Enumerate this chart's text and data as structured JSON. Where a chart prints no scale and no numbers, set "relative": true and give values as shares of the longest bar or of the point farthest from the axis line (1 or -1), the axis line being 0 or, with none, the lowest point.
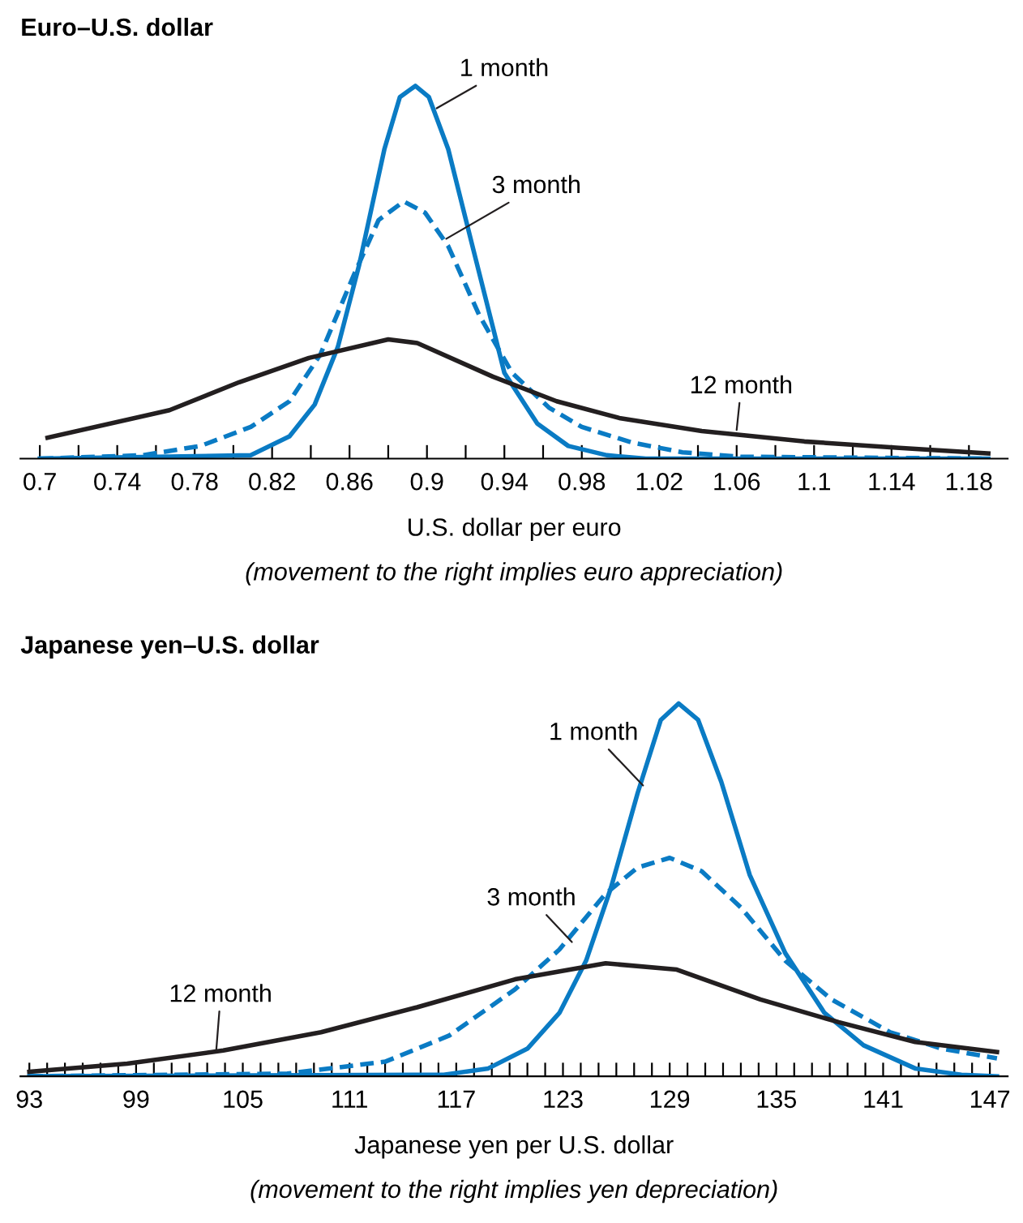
{
  "chart_data": [
    {
      "type": "line",
      "title": "Euro–U.S. dollar",
      "xlabel": "U.S. dollar per euro",
      "relative": true,
      "legend": false,
      "grid": false,
      "xlim": [
        0.69,
        1.2
      ],
      "xticks": [
        0.7,
        {
          "value": 0.72,
          "label": null
        },
        0.74,
        {
          "value": 0.76,
          "label": null
        },
        0.78,
        {
          "value": 0.8,
          "label": null
        },
        0.82,
        {
          "value": 0.84,
          "label": null
        },
        0.86,
        {
          "value": 0.88,
          "label": null
        },
        0.9,
        {
          "value": 0.92,
          "label": null
        },
        0.94,
        {
          "value": 0.96,
          "label": null
        },
        0.98,
        {
          "value": 1.0,
          "label": null
        },
        1.02,
        {
          "value": 1.04,
          "label": null
        },
        1.06,
        {
          "value": 1.08,
          "label": null
        },
        1.1,
        {
          "value": 1.12,
          "label": null
        },
        1.14,
        {
          "value": 1.16,
          "label": null
        },
        1.18
      ],
      "series": [
        {
          "color": "#0a7bc4",
          "line_style": "solid",
          "x": [
            0.7,
            0.809,
            0.829,
            0.842,
            0.854,
            0.865,
            0.878,
            0.886,
            0.894,
            0.901,
            0.911,
            0.924,
            0.94,
            0.957,
            0.973,
            0.993,
            1.013,
            1.19
          ],
          "values": [
            0,
            0.009,
            0.06,
            0.145,
            0.3,
            0.52,
            0.83,
            0.97,
            1.0,
            0.97,
            0.83,
            0.56,
            0.23,
            0.094,
            0.034,
            0.009,
            0,
            0
          ]
        },
        {
          "color": "#0a7bc4",
          "line_style": "dashed",
          "x": [
            0.7,
            0.753,
            0.783,
            0.809,
            0.829,
            0.845,
            0.862,
            0.875,
            0.888,
            0.899,
            0.911,
            0.927,
            0.944,
            0.963,
            0.98,
            1.006,
            1.032,
            1.062,
            1.19
          ],
          "values": [
            0,
            0.009,
            0.034,
            0.085,
            0.154,
            0.28,
            0.49,
            0.64,
            0.69,
            0.66,
            0.57,
            0.385,
            0.23,
            0.137,
            0.085,
            0.043,
            0.017,
            0.005,
            0
          ]
        },
        {
          "color": "#231f20",
          "line_style": "solid",
          "x": [
            0.704,
            0.767,
            0.803,
            0.839,
            0.88,
            0.895,
            0.934,
            0.967,
            1.0,
            1.042,
            1.095,
            1.144,
            1.19
          ],
          "values": [
            0.056,
            0.13,
            0.205,
            0.27,
            0.32,
            0.31,
            0.22,
            0.154,
            0.108,
            0.074,
            0.046,
            0.029,
            0.014
          ]
        }
      ],
      "annotations": [
        {
          "text": "1 month",
          "x": 0.905,
          "y": 0.94
        },
        {
          "text": "3 month",
          "x": 0.91,
          "y": 0.59
        },
        {
          "text": "12 month",
          "x": 1.06,
          "y": 0.077
        },
        "(movement to the right implies euro appreciation)"
      ]
    },
    {
      "type": "line",
      "title": "Japanese yen–U.S. dollar",
      "xlabel": "Japanese yen per U.S. dollar",
      "relative": true,
      "legend": false,
      "grid": false,
      "xlim": [
        92.5,
        148
      ],
      "xticks": [
        93,
        {
          "value": 94,
          "label": null
        },
        {
          "value": 95,
          "label": null
        },
        {
          "value": 96,
          "label": null
        },
        {
          "value": 97,
          "label": null
        },
        {
          "value": 98,
          "label": null
        },
        99,
        {
          "value": 100,
          "label": null
        },
        {
          "value": 101,
          "label": null
        },
        {
          "value": 102,
          "label": null
        },
        {
          "value": 103,
          "label": null
        },
        {
          "value": 104,
          "label": null
        },
        105,
        {
          "value": 106,
          "label": null
        },
        {
          "value": 107,
          "label": null
        },
        {
          "value": 108,
          "label": null
        },
        {
          "value": 109,
          "label": null
        },
        {
          "value": 110,
          "label": null
        },
        111,
        {
          "value": 112,
          "label": null
        },
        {
          "value": 113,
          "label": null
        },
        {
          "value": 114,
          "label": null
        },
        {
          "value": 115,
          "label": null
        },
        {
          "value": 116,
          "label": null
        },
        117,
        {
          "value": 118,
          "label": null
        },
        {
          "value": 119,
          "label": null
        },
        {
          "value": 120,
          "label": null
        },
        {
          "value": 121,
          "label": null
        },
        {
          "value": 122,
          "label": null
        },
        123,
        {
          "value": 124,
          "label": null
        },
        {
          "value": 125,
          "label": null
        },
        {
          "value": 126,
          "label": null
        },
        {
          "value": 127,
          "label": null
        },
        {
          "value": 128,
          "label": null
        },
        129,
        {
          "value": 130,
          "label": null
        },
        {
          "value": 131,
          "label": null
        },
        {
          "value": 132,
          "label": null
        },
        {
          "value": 133,
          "label": null
        },
        {
          "value": 134,
          "label": null
        },
        135,
        {
          "value": 136,
          "label": null
        },
        {
          "value": 137,
          "label": null
        },
        {
          "value": 138,
          "label": null
        },
        {
          "value": 139,
          "label": null
        },
        {
          "value": 140,
          "label": null
        },
        141,
        {
          "value": 142,
          "label": null
        },
        {
          "value": 143,
          "label": null
        },
        {
          "value": 144,
          "label": null
        },
        {
          "value": 145,
          "label": null
        },
        {
          "value": 146,
          "label": null
        },
        147
      ],
      "series": [
        {
          "color": "#0a7bc4",
          "line_style": "solid",
          "x": [
            93,
            116.3,
            118.8,
            121.0,
            122.8,
            124.3,
            125.7,
            127.2,
            128.5,
            129.5,
            130.6,
            131.9,
            133.5,
            135.5,
            137.7,
            139.9,
            142.8,
            145.4,
            147.4
          ],
          "values": [
            0,
            0.004,
            0.021,
            0.074,
            0.17,
            0.31,
            0.506,
            0.76,
            0.956,
            1.0,
            0.956,
            0.79,
            0.54,
            0.33,
            0.17,
            0.083,
            0.021,
            0.004,
            0
          ]
        },
        {
          "color": "#0a7bc4",
          "line_style": "dashed",
          "x": [
            93,
            107.5,
            113.0,
            116.6,
            120.3,
            122.8,
            125.4,
            127.2,
            129.0,
            130.8,
            133.0,
            135.5,
            138.1,
            141.4,
            144.3,
            147.4
          ],
          "values": [
            0,
            0.007,
            0.039,
            0.109,
            0.233,
            0.34,
            0.49,
            0.56,
            0.586,
            0.55,
            0.453,
            0.31,
            0.206,
            0.118,
            0.074,
            0.048
          ]
        },
        {
          "color": "#231f20",
          "line_style": "solid",
          "x": [
            93,
            98.5,
            103.9,
            109.4,
            114.8,
            120.3,
            125.4,
            129.4,
            134.1,
            138.5,
            142.8,
            147.4
          ],
          "values": [
            0.012,
            0.034,
            0.069,
            0.118,
            0.185,
            0.26,
            0.303,
            0.286,
            0.206,
            0.145,
            0.092,
            0.065
          ]
        }
      ],
      "annotations": [
        {
          "text": "1 month",
          "x": 127.5,
          "y": 0.78
        },
        {
          "text": "3 month",
          "x": 123.5,
          "y": 0.36
        },
        {
          "text": "12 month",
          "x": 103.5,
          "y": 0.065
        },
        "(movement to the right implies yen depreciation)"
      ]
    }
  ]
}
